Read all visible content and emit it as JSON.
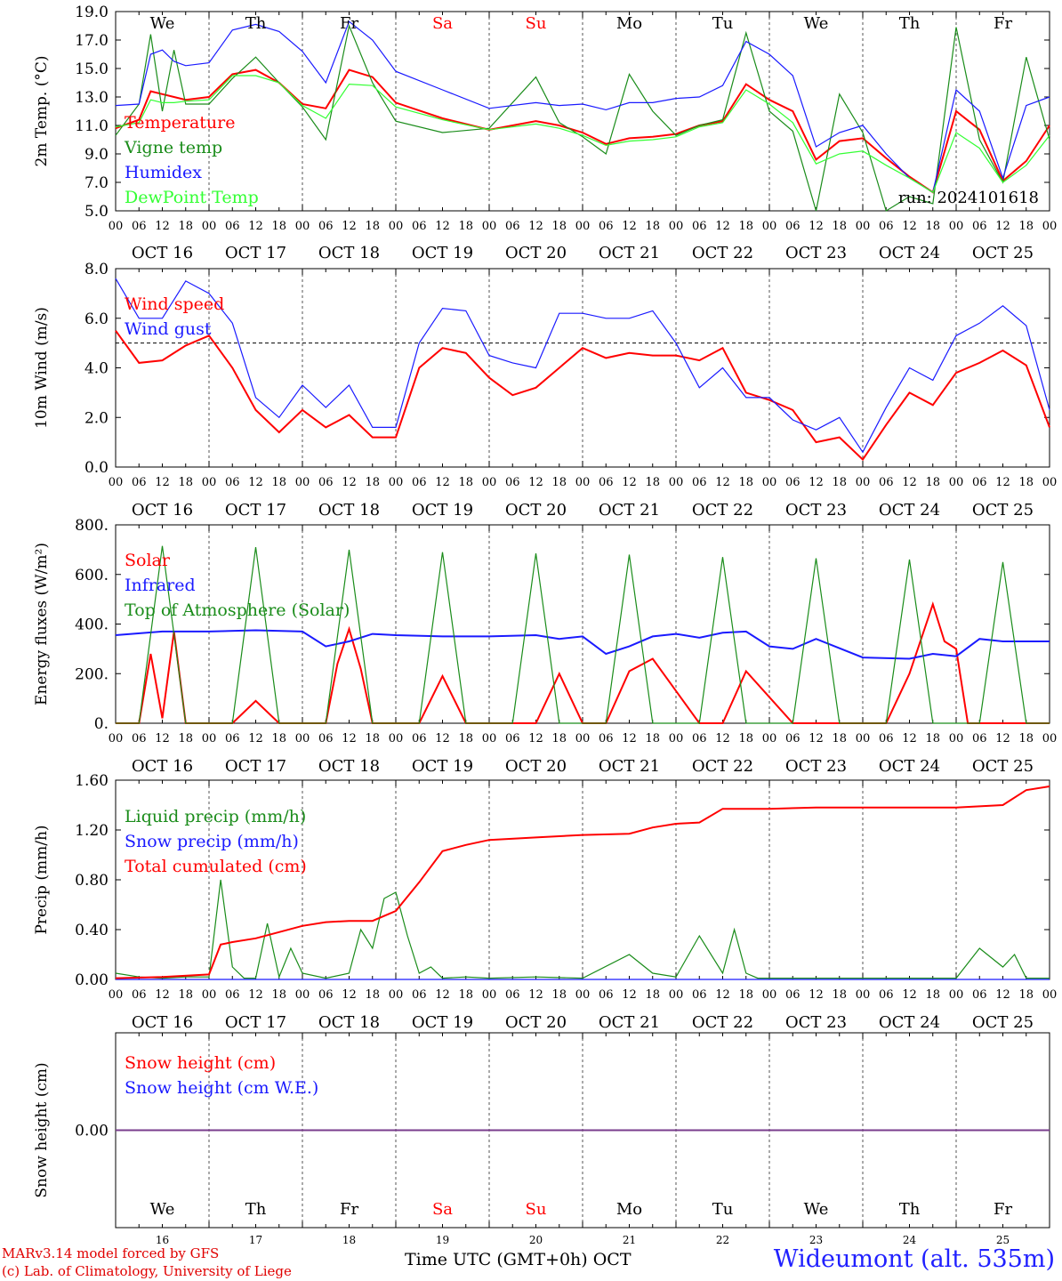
{
  "run_label": "run: 2024101618",
  "station": "Wideumont (alt. 535m)",
  "credits": [
    "MARv3.14 model forced by GFS",
    "(c) Lab. of Climatology, University of Liege"
  ],
  "x_axis_title": "Time UTC (GMT+0h) OCT",
  "colors": {
    "red": "#ff0000",
    "green": "#1a8c1a",
    "blue": "#1a1aff",
    "lightgreen": "#33ff33",
    "purple": "#7a3d8c"
  },
  "days": [
    {
      "weekday": "We",
      "date": "OCT 16",
      "num": "16",
      "weekend": false
    },
    {
      "weekday": "Th",
      "date": "OCT 17",
      "num": "17",
      "weekend": false
    },
    {
      "weekday": "Fr",
      "date": "OCT 18",
      "num": "18",
      "weekend": false
    },
    {
      "weekday": "Sa",
      "date": "OCT 19",
      "num": "19",
      "weekend": true
    },
    {
      "weekday": "Su",
      "date": "OCT 20",
      "num": "20",
      "weekend": true
    },
    {
      "weekday": "Mo",
      "date": "OCT 21",
      "num": "21",
      "weekend": false
    },
    {
      "weekday": "Tu",
      "date": "OCT 22",
      "num": "22",
      "weekend": false
    },
    {
      "weekday": "We",
      "date": "OCT 23",
      "num": "23",
      "weekend": false
    },
    {
      "weekday": "Th",
      "date": "OCT 24",
      "num": "24",
      "weekend": false
    },
    {
      "weekday": "Fr",
      "date": "OCT 25",
      "num": "25",
      "weekend": false
    }
  ],
  "hour_ticks": [
    "00",
    "06",
    "12",
    "18"
  ],
  "chart_data": [
    {
      "type": "line",
      "ylabel": "2m Temp. (°C)",
      "ylim": [
        5,
        19
      ],
      "ytick_labels": [
        "5.0",
        "7.0",
        "9.0",
        "11.0",
        "13.0",
        "15.0",
        "17.0",
        "19.0"
      ],
      "x_unit": "hours since OCT 16 00 UTC",
      "xlim": [
        0,
        240
      ],
      "series": [
        {
          "name": "Temperature",
          "color": "red",
          "x": [
            0,
            6,
            9,
            12,
            15,
            18,
            24,
            30,
            36,
            42,
            48,
            54,
            60,
            66,
            72,
            84,
            96,
            108,
            114,
            120,
            126,
            132,
            138,
            144,
            150,
            156,
            162,
            168,
            174,
            180,
            186,
            192,
            198,
            204,
            210,
            216,
            222,
            228,
            234,
            240
          ],
          "y": [
            10.8,
            11.4,
            13.4,
            13.2,
            13.0,
            12.8,
            13.0,
            14.6,
            14.9,
            14.0,
            12.5,
            12.2,
            14.9,
            14.4,
            12.6,
            11.5,
            10.7,
            11.3,
            11.0,
            10.5,
            9.7,
            10.1,
            10.2,
            10.4,
            11.0,
            11.3,
            13.9,
            12.8,
            12.0,
            8.6,
            9.9,
            10.1,
            8.7,
            7.4,
            6.3,
            12.0,
            10.7,
            7.1,
            8.5,
            11.0
          ]
        },
        {
          "name": "Vigne temp",
          "color": "green",
          "x": [
            0,
            6,
            9,
            12,
            15,
            18,
            24,
            30,
            36,
            42,
            48,
            54,
            60,
            66,
            72,
            84,
            96,
            108,
            114,
            120,
            126,
            132,
            138,
            144,
            150,
            156,
            162,
            168,
            174,
            180,
            186,
            192,
            198,
            204,
            210,
            216,
            222,
            228,
            234,
            240
          ],
          "y": [
            10.3,
            12.5,
            17.4,
            12.0,
            16.3,
            12.5,
            12.5,
            14.3,
            15.8,
            14.0,
            12.3,
            10.0,
            18.0,
            14.0,
            11.3,
            10.5,
            10.8,
            14.4,
            11.2,
            10.2,
            9.0,
            14.6,
            12.0,
            10.3,
            11.0,
            11.4,
            17.5,
            12.0,
            10.6,
            5.0,
            13.2,
            10.5,
            5.0,
            6.0,
            5.5,
            17.9,
            10.0,
            7.0,
            15.8,
            10.0
          ]
        },
        {
          "name": "Humidex",
          "color": "blue",
          "x": [
            0,
            6,
            9,
            12,
            15,
            18,
            24,
            30,
            36,
            42,
            48,
            54,
            60,
            66,
            72,
            84,
            96,
            108,
            114,
            120,
            126,
            132,
            138,
            144,
            150,
            156,
            162,
            168,
            174,
            180,
            186,
            192,
            198,
            204,
            210,
            216,
            222,
            228,
            234,
            240
          ],
          "y": [
            12.4,
            12.5,
            16.0,
            16.3,
            15.5,
            15.2,
            15.4,
            17.7,
            18.1,
            17.6,
            16.2,
            14.0,
            18.3,
            17.0,
            14.8,
            13.5,
            12.2,
            12.6,
            12.4,
            12.5,
            12.1,
            12.6,
            12.6,
            12.9,
            13.0,
            13.8,
            16.9,
            16.0,
            14.5,
            9.5,
            10.5,
            11.0,
            9.0,
            7.3,
            6.3,
            13.5,
            12.0,
            7.3,
            12.4,
            13.0
          ]
        },
        {
          "name": "DewPoint Temp",
          "color": "lightgreen",
          "x": [
            0,
            6,
            9,
            12,
            15,
            18,
            24,
            30,
            36,
            42,
            48,
            54,
            60,
            66,
            72,
            84,
            96,
            108,
            114,
            120,
            126,
            132,
            138,
            144,
            150,
            156,
            162,
            168,
            174,
            180,
            186,
            192,
            198,
            204,
            210,
            216,
            222,
            228,
            234,
            240
          ],
          "y": [
            10.9,
            11.2,
            12.8,
            12.6,
            12.6,
            12.7,
            12.8,
            14.5,
            14.5,
            14.0,
            12.4,
            11.5,
            13.9,
            13.8,
            12.3,
            11.4,
            10.7,
            11.1,
            10.8,
            10.3,
            9.6,
            9.9,
            10.0,
            10.2,
            10.9,
            11.2,
            13.5,
            12.5,
            11.2,
            8.3,
            9.0,
            9.2,
            8.2,
            7.3,
            6.3,
            10.5,
            9.4,
            7.0,
            8.2,
            10.3
          ]
        }
      ]
    },
    {
      "type": "line",
      "ylabel": "10m Wind (m/s)",
      "ylim": [
        0,
        8
      ],
      "ytick_labels": [
        "0.0",
        "2.0",
        "4.0",
        "6.0",
        "8.0"
      ],
      "reference_line": 5,
      "series": [
        {
          "name": "Wind speed",
          "color": "red",
          "x": [
            0,
            6,
            12,
            18,
            24,
            30,
            36,
            42,
            48,
            54,
            60,
            66,
            72,
            78,
            84,
            90,
            96,
            102,
            108,
            114,
            120,
            126,
            132,
            138,
            144,
            150,
            156,
            162,
            168,
            174,
            180,
            186,
            192,
            198,
            204,
            210,
            216,
            222,
            228,
            234,
            240
          ],
          "y": [
            5.5,
            4.2,
            4.3,
            4.9,
            5.3,
            4.0,
            2.3,
            1.4,
            2.3,
            1.6,
            2.1,
            1.2,
            1.2,
            4.0,
            4.8,
            4.6,
            3.6,
            2.9,
            3.2,
            4.0,
            4.8,
            4.4,
            4.6,
            4.5,
            4.5,
            4.3,
            4.8,
            3.0,
            2.7,
            2.3,
            1.0,
            1.2,
            0.3,
            1.7,
            3.0,
            2.5,
            3.8,
            4.2,
            4.7,
            4.1,
            1.6
          ]
        },
        {
          "name": "Wind gust",
          "color": "blue",
          "x": [
            0,
            6,
            12,
            18,
            24,
            30,
            36,
            42,
            48,
            54,
            60,
            66,
            72,
            78,
            84,
            90,
            96,
            102,
            108,
            114,
            120,
            126,
            132,
            138,
            144,
            150,
            156,
            162,
            168,
            174,
            180,
            186,
            192,
            198,
            204,
            210,
            216,
            222,
            228,
            234,
            240
          ],
          "y": [
            7.6,
            6.0,
            6.0,
            7.5,
            7.0,
            5.8,
            2.8,
            2.0,
            3.3,
            2.4,
            3.3,
            1.6,
            1.6,
            5.0,
            6.4,
            6.3,
            4.5,
            4.2,
            4.0,
            6.2,
            6.2,
            6.0,
            6.0,
            6.3,
            5.0,
            3.2,
            4.0,
            2.8,
            2.8,
            1.9,
            1.5,
            2.0,
            0.6,
            2.4,
            4.0,
            3.5,
            5.3,
            5.8,
            6.5,
            5.7,
            2.3
          ]
        }
      ]
    },
    {
      "type": "line",
      "ylabel": "Energy fluxes (W/m²)",
      "ylim": [
        0,
        800
      ],
      "ytick_labels": [
        "0.",
        "200.",
        "400.",
        "600.",
        "800."
      ],
      "series": [
        {
          "name": "Solar",
          "color": "red",
          "x": [
            0,
            6,
            9,
            12,
            15,
            18,
            30,
            36,
            42,
            54,
            57,
            60,
            63,
            66,
            78,
            84,
            90,
            102,
            108,
            114,
            120,
            126,
            132,
            138,
            150,
            156,
            162,
            174,
            180,
            186,
            192,
            198,
            204,
            210,
            213,
            216,
            219,
            222,
            228,
            234,
            240
          ],
          "y": [
            0,
            0,
            280,
            20,
            370,
            0,
            0,
            90,
            0,
            0,
            240,
            380,
            220,
            0,
            0,
            190,
            0,
            0,
            0,
            200,
            0,
            0,
            210,
            260,
            0,
            0,
            210,
            0,
            0,
            0,
            0,
            0,
            200,
            480,
            330,
            300,
            0,
            0,
            0,
            0,
            0
          ]
        },
        {
          "name": "Infrared",
          "color": "blue",
          "x": [
            0,
            12,
            24,
            36,
            48,
            54,
            60,
            66,
            72,
            84,
            96,
            108,
            114,
            120,
            126,
            132,
            138,
            144,
            150,
            156,
            162,
            168,
            174,
            180,
            192,
            204,
            210,
            216,
            222,
            228,
            240
          ],
          "y": [
            355,
            370,
            370,
            375,
            370,
            310,
            330,
            360,
            355,
            350,
            350,
            355,
            340,
            350,
            280,
            310,
            350,
            360,
            345,
            365,
            370,
            310,
            300,
            340,
            265,
            260,
            280,
            270,
            340,
            330,
            330
          ]
        },
        {
          "name": "Top of Atmosphere (Solar)",
          "color": "green",
          "x": [
            0,
            6,
            12,
            18,
            24,
            30,
            36,
            42,
            48,
            54,
            60,
            66,
            72,
            78,
            84,
            90,
            96,
            102,
            108,
            114,
            120,
            126,
            132,
            138,
            144,
            150,
            156,
            162,
            168,
            174,
            180,
            186,
            192,
            198,
            204,
            210,
            216,
            222,
            228,
            234,
            240
          ],
          "y": [
            0,
            0,
            715,
            0,
            0,
            0,
            710,
            0,
            0,
            0,
            700,
            0,
            0,
            0,
            690,
            0,
            0,
            0,
            685,
            0,
            0,
            0,
            680,
            0,
            0,
            0,
            670,
            0,
            0,
            0,
            665,
            0,
            0,
            0,
            660,
            0,
            0,
            0,
            650,
            0,
            0
          ]
        }
      ]
    },
    {
      "type": "line",
      "ylabel": "Precip (mm/h)",
      "ylim": [
        0,
        1.6
      ],
      "ytick_labels": [
        "0.00",
        "0.40",
        "0.80",
        "1.20",
        "1.60"
      ],
      "series": [
        {
          "name": "Liquid precip (mm/h)",
          "color": "green",
          "x": [
            0,
            6,
            12,
            18,
            24,
            27,
            30,
            33,
            36,
            39,
            42,
            45,
            48,
            54,
            60,
            63,
            66,
            69,
            72,
            75,
            78,
            81,
            84,
            90,
            96,
            108,
            120,
            132,
            138,
            144,
            150,
            156,
            159,
            162,
            165,
            168,
            192,
            216,
            222,
            228,
            231,
            234,
            240
          ],
          "y": [
            0.05,
            0.02,
            0.01,
            0.02,
            0.02,
            0.8,
            0.1,
            0.01,
            0.01,
            0.45,
            0.02,
            0.25,
            0.05,
            0.01,
            0.05,
            0.4,
            0.25,
            0.65,
            0.7,
            0.35,
            0.05,
            0.1,
            0.01,
            0.02,
            0.01,
            0.02,
            0.01,
            0.2,
            0.05,
            0.02,
            0.35,
            0.05,
            0.4,
            0.05,
            0.01,
            0.01,
            0.01,
            0.01,
            0.25,
            0.1,
            0.2,
            0.01,
            0.01
          ]
        },
        {
          "name": "Snow precip (mm/h)",
          "color": "blue",
          "x": [
            0,
            240
          ],
          "y": [
            0,
            0
          ]
        },
        {
          "name": "Total cumulated (cm)",
          "color": "red",
          "x": [
            0,
            12,
            24,
            27,
            30,
            36,
            42,
            48,
            54,
            60,
            66,
            72,
            78,
            84,
            90,
            96,
            108,
            120,
            132,
            138,
            144,
            150,
            156,
            168,
            180,
            192,
            204,
            216,
            228,
            234,
            240
          ],
          "y": [
            0.01,
            0.02,
            0.04,
            0.28,
            0.3,
            0.33,
            0.38,
            0.43,
            0.46,
            0.47,
            0.47,
            0.55,
            0.78,
            1.03,
            1.08,
            1.12,
            1.14,
            1.16,
            1.17,
            1.22,
            1.25,
            1.26,
            1.37,
            1.37,
            1.38,
            1.38,
            1.38,
            1.38,
            1.4,
            1.52,
            1.55
          ]
        }
      ]
    },
    {
      "type": "line",
      "ylabel": "Snow height (cm)",
      "ytick_labels": [
        "0.00"
      ],
      "series": [
        {
          "name": "Snow height (cm)",
          "color": "red",
          "x": [
            0,
            240
          ],
          "y": [
            0,
            0
          ]
        },
        {
          "name": "Snow height (cm W.E.)",
          "color": "blue",
          "x": [
            0,
            240
          ],
          "y": [
            0,
            0
          ]
        }
      ]
    }
  ]
}
